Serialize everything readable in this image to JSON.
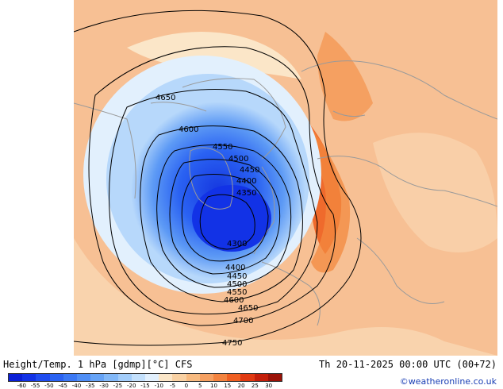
{
  "map": {
    "title": "Height/Temp. 1 hPa [gdmp][°C] CFS",
    "valid_time": "Th 20-11-2025 00:00 UTC (00+72)",
    "credit": "©weatheronline.co.uk",
    "contour_labels": [
      "4650",
      "4600",
      "4550",
      "4500",
      "4450",
      "4400",
      "4350",
      "4300",
      "4400",
      "4450",
      "4500",
      "4550",
      "4600",
      "4650",
      "4700",
      "4750"
    ],
    "legend": {
      "ticks": [
        "-60",
        "-55",
        "-50",
        "-45",
        "-40",
        "-35",
        "-30",
        "-25",
        "-20",
        "-15",
        "-10",
        "-5",
        "0",
        "5",
        "10",
        "15",
        "20",
        "25",
        "30"
      ],
      "colors": [
        "#0a1fd6",
        "#1232e6",
        "#1f4cef",
        "#2a62f2",
        "#3b78f4",
        "#4f8ef5",
        "#66a3f6",
        "#82b8f8",
        "#a3cdfa",
        "#c3e0fc",
        "#e2f0fd",
        "#fbe6c8",
        "#f9d1a3",
        "#f7ba80",
        "#f5a061",
        "#f3833f",
        "#ef5f22",
        "#e13a12",
        "#c41f0b",
        "#9b1208"
      ]
    },
    "palette": {
      "background": "#f7c094",
      "warm_band": "#ee6a2c",
      "cold_core": "#1e4fe6",
      "coast": "#9a9a9a"
    }
  }
}
